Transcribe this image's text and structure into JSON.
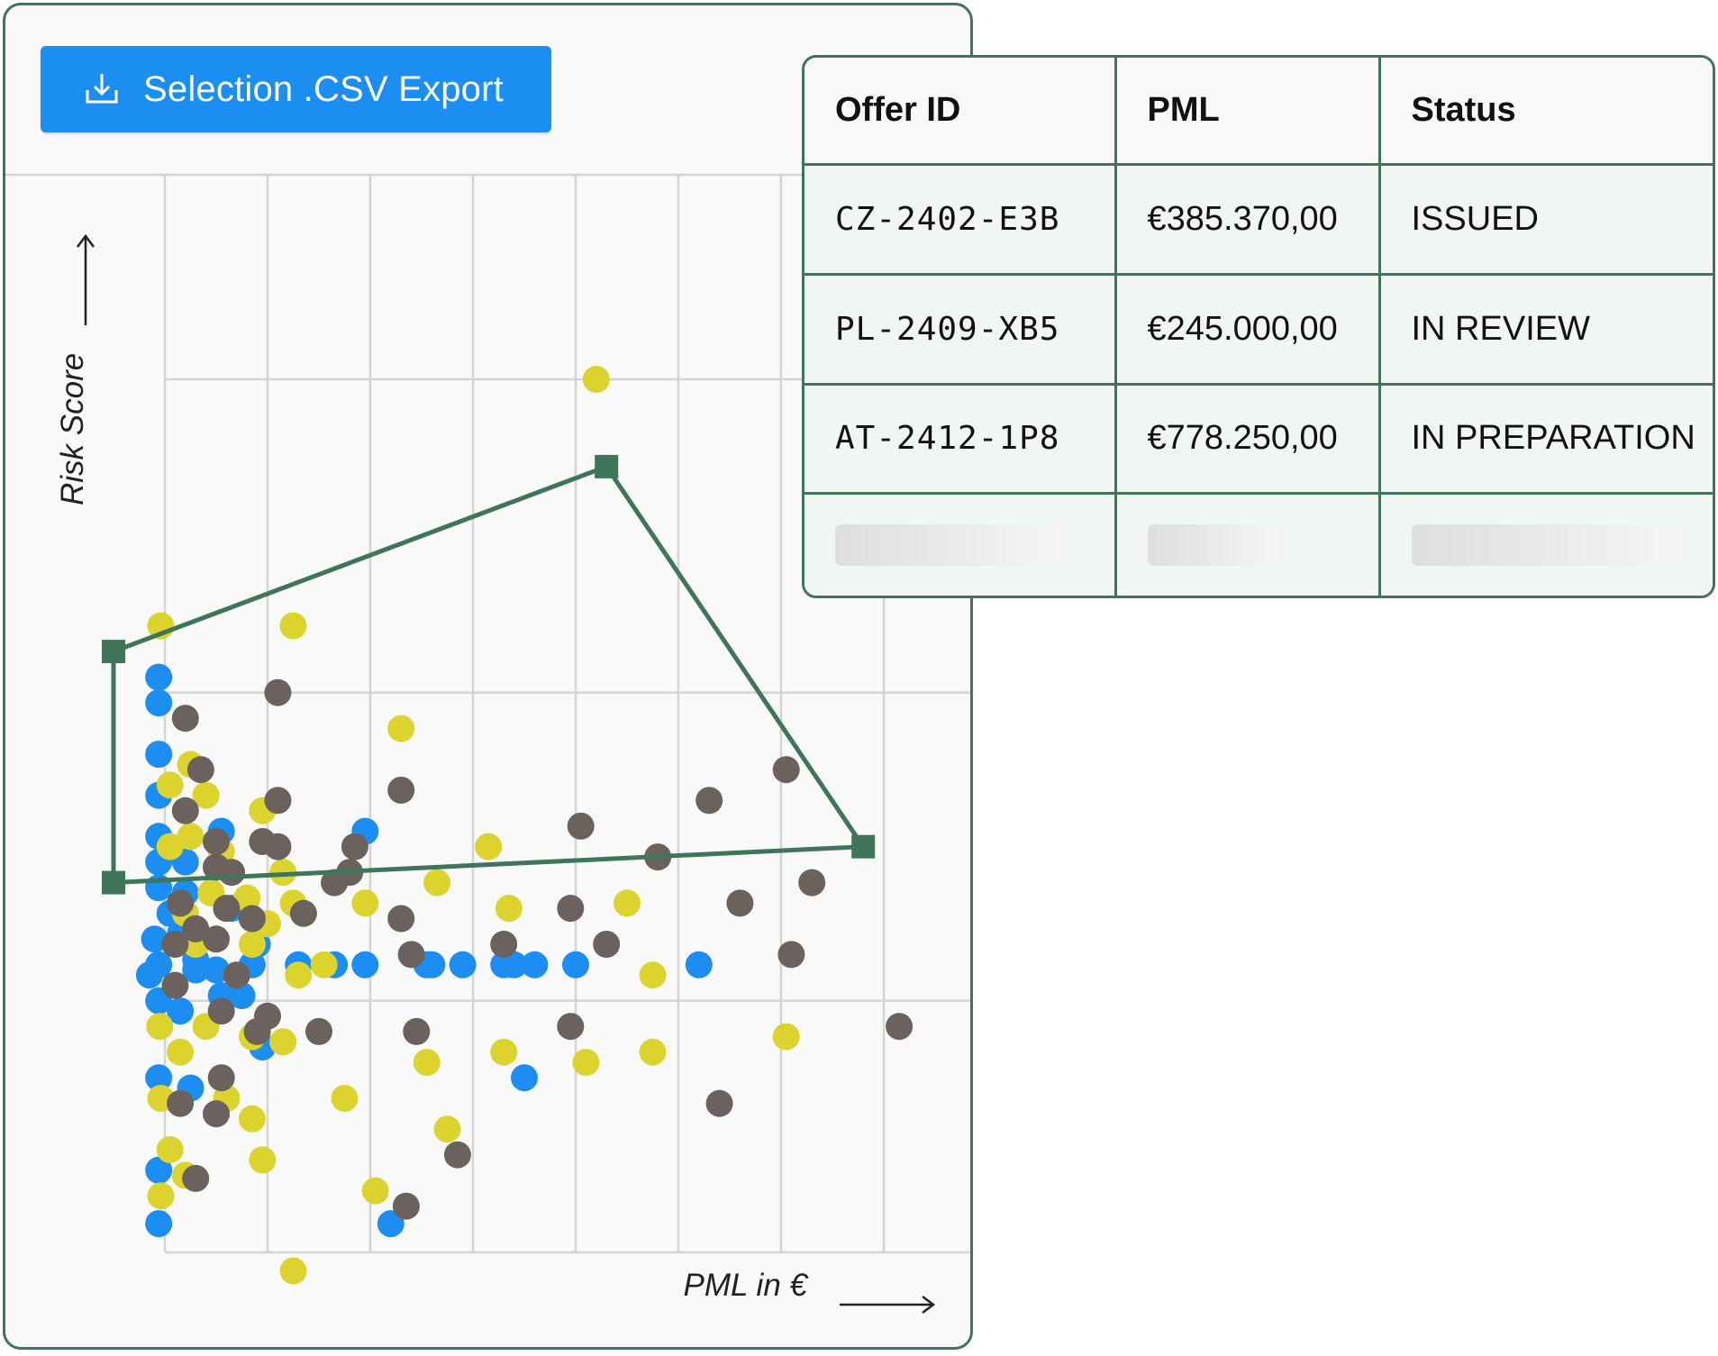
{
  "export_button": {
    "label": "Selection .CSV Export",
    "icon": "download-icon"
  },
  "chart_data": {
    "type": "scatter",
    "xlabel": "PML in €",
    "ylabel": "Risk Score",
    "xlim": [
      0,
      10
    ],
    "ylim": [
      0,
      10
    ],
    "grid": true,
    "colors": {
      "blue": "#1c8ef2",
      "yellow": "#dcd32e",
      "gray": "#6b625e"
    },
    "series": [
      {
        "name": "blue",
        "points": [
          [
            -0.06,
            5.6
          ],
          [
            -0.06,
            5.35
          ],
          [
            -0.06,
            4.85
          ],
          [
            -0.06,
            4.45
          ],
          [
            -0.06,
            4.05
          ],
          [
            0.55,
            4.1
          ],
          [
            1.95,
            4.1
          ],
          [
            -0.06,
            3.8
          ],
          [
            -0.06,
            3.55
          ],
          [
            0.2,
            3.8
          ],
          [
            0.2,
            3.5
          ],
          [
            0.05,
            3.3
          ],
          [
            0.65,
            3.35
          ],
          [
            -0.1,
            3.05
          ],
          [
            0.15,
            3.1
          ],
          [
            0.9,
            3.0
          ],
          [
            0.3,
            2.85
          ],
          [
            -0.06,
            2.8
          ],
          [
            -0.15,
            2.7
          ],
          [
            0.3,
            2.75
          ],
          [
            0.5,
            2.75
          ],
          [
            0.85,
            2.8
          ],
          [
            1.3,
            2.8
          ],
          [
            1.65,
            2.8
          ],
          [
            1.95,
            2.8
          ],
          [
            2.6,
            2.8
          ],
          [
            2.55,
            2.8
          ],
          [
            2.9,
            2.8
          ],
          [
            3.3,
            2.8
          ],
          [
            3.4,
            2.8
          ],
          [
            3.6,
            2.8
          ],
          [
            4.0,
            2.8
          ],
          [
            5.2,
            2.8
          ],
          [
            -0.06,
            2.45
          ],
          [
            0.15,
            2.35
          ],
          [
            0.55,
            2.5
          ],
          [
            0.75,
            2.5
          ],
          [
            0.95,
            2.0
          ],
          [
            -0.06,
            1.7
          ],
          [
            0.25,
            1.6
          ],
          [
            3.5,
            1.7
          ],
          [
            -0.06,
            0.8
          ],
          [
            -0.06,
            0.28
          ],
          [
            2.2,
            0.28
          ]
        ]
      },
      {
        "name": "yellow",
        "points": [
          [
            -0.04,
            6.1
          ],
          [
            1.25,
            6.1
          ],
          [
            2.3,
            5.1
          ],
          [
            0.25,
            4.75
          ],
          [
            0.4,
            4.45
          ],
          [
            0.05,
            4.55
          ],
          [
            0.95,
            4.3
          ],
          [
            0.25,
            4.05
          ],
          [
            0.05,
            3.95
          ],
          [
            0.55,
            3.9
          ],
          [
            1.15,
            3.7
          ],
          [
            3.15,
            3.95
          ],
          [
            2.65,
            3.6
          ],
          [
            3.35,
            3.35
          ],
          [
            4.5,
            3.4
          ],
          [
            0.8,
            3.45
          ],
          [
            1.25,
            3.4
          ],
          [
            1.95,
            3.4
          ],
          [
            0.45,
            3.5
          ],
          [
            0.2,
            3.3
          ],
          [
            1.0,
            3.2
          ],
          [
            0.3,
            3.0
          ],
          [
            0.85,
            3.0
          ],
          [
            1.3,
            2.7
          ],
          [
            1.55,
            2.8
          ],
          [
            4.75,
            2.7
          ],
          [
            -0.05,
            2.2
          ],
          [
            0.4,
            2.2
          ],
          [
            0.85,
            2.1
          ],
          [
            1.15,
            2.05
          ],
          [
            3.3,
            1.95
          ],
          [
            2.55,
            1.85
          ],
          [
            4.1,
            1.85
          ],
          [
            4.75,
            1.95
          ],
          [
            6.05,
            2.1
          ],
          [
            -0.04,
            1.5
          ],
          [
            0.15,
            1.95
          ],
          [
            0.6,
            1.5
          ],
          [
            0.85,
            1.3
          ],
          [
            1.75,
            1.5
          ],
          [
            2.75,
            1.2
          ],
          [
            0.05,
            1.0
          ],
          [
            0.2,
            0.75
          ],
          [
            0.95,
            0.9
          ],
          [
            2.05,
            0.6
          ],
          [
            -0.04,
            0.55
          ],
          [
            1.25,
            -0.18
          ],
          [
            4.2,
            8.5
          ]
        ]
      },
      {
        "name": "gray",
        "points": [
          [
            1.1,
            5.45
          ],
          [
            0.2,
            5.2
          ],
          [
            0.35,
            4.7
          ],
          [
            0.2,
            4.3
          ],
          [
            1.1,
            4.4
          ],
          [
            2.3,
            4.5
          ],
          [
            5.3,
            4.4
          ],
          [
            6.05,
            4.7
          ],
          [
            4.05,
            4.15
          ],
          [
            0.5,
            4.0
          ],
          [
            0.95,
            4.0
          ],
          [
            1.1,
            3.95
          ],
          [
            1.85,
            3.95
          ],
          [
            1.8,
            3.7
          ],
          [
            4.8,
            3.85
          ],
          [
            0.5,
            3.75
          ],
          [
            0.65,
            3.7
          ],
          [
            1.65,
            3.6
          ],
          [
            6.3,
            3.6
          ],
          [
            0.15,
            3.4
          ],
          [
            0.6,
            3.35
          ],
          [
            0.85,
            3.25
          ],
          [
            1.35,
            3.3
          ],
          [
            2.3,
            3.25
          ],
          [
            3.95,
            3.35
          ],
          [
            5.6,
            3.4
          ],
          [
            0.3,
            3.15
          ],
          [
            0.1,
            3.0
          ],
          [
            0.5,
            3.05
          ],
          [
            3.3,
            3.0
          ],
          [
            4.3,
            3.0
          ],
          [
            2.4,
            2.9
          ],
          [
            6.1,
            2.9
          ],
          [
            0.7,
            2.7
          ],
          [
            0.1,
            2.6
          ],
          [
            0.55,
            2.35
          ],
          [
            1.0,
            2.3
          ],
          [
            0.9,
            2.15
          ],
          [
            1.5,
            2.15
          ],
          [
            2.45,
            2.15
          ],
          [
            3.95,
            2.2
          ],
          [
            7.15,
            2.2
          ],
          [
            0.55,
            1.7
          ],
          [
            0.15,
            1.45
          ],
          [
            0.5,
            1.35
          ],
          [
            5.4,
            1.45
          ],
          [
            2.85,
            0.95
          ],
          [
            0.3,
            0.72
          ],
          [
            2.35,
            0.45
          ]
        ]
      }
    ],
    "lasso": [
      [
        -0.5,
        5.85
      ],
      [
        4.3,
        7.65
      ],
      [
        6.8,
        3.95
      ],
      [
        -0.5,
        3.6
      ]
    ]
  },
  "table": {
    "headers": [
      "Offer ID",
      "PML",
      "Status"
    ],
    "rows": [
      {
        "offer_id": "CZ-2402-E3B",
        "pml": "€385.370,00",
        "status": "ISSUED"
      },
      {
        "offer_id": "PL-2409-XB5",
        "pml": "€245.000,00",
        "status": "IN REVIEW"
      },
      {
        "offer_id": "AT-2412-1P8",
        "pml": "€778.250,00",
        "status": "IN PREPARATION"
      }
    ]
  }
}
